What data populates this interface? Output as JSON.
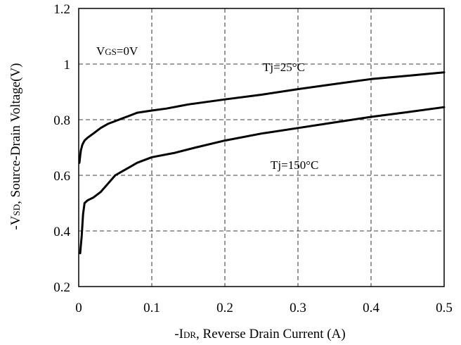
{
  "chart_data": {
    "type": "line",
    "title": "",
    "xlabel": {
      "prefix": "-I",
      "sub": "DR",
      "rest": ", Reverse Drain Current (A)"
    },
    "ylabel": {
      "prefix": "-V",
      "sub": "SD",
      "rest": ", Source-Drain Voltage(V)"
    },
    "xlim": [
      0,
      0.5
    ],
    "ylim": [
      0.2,
      1.2
    ],
    "x_ticks": [
      0,
      0.1,
      0.2,
      0.3,
      0.4,
      0.5
    ],
    "y_ticks": [
      0.2,
      0.4,
      0.6,
      0.8,
      1.0,
      1.2
    ],
    "x_tick_labels": [
      "0",
      "0.1",
      "0.2",
      "0.3",
      "0.4",
      "0.5"
    ],
    "y_tick_labels": [
      "0.2",
      "0.4",
      "0.6",
      "0.8",
      "1",
      "1.2"
    ],
    "grid": "dashed",
    "annotations": {
      "condition": {
        "prefix": "V",
        "sub": "GS",
        "rest": "=0V"
      },
      "series_labels": [
        "Tj=25°C",
        "Tj=150°C"
      ]
    },
    "series": [
      {
        "name": "Tj=25°C",
        "x": [
          0.001,
          0.002,
          0.003,
          0.005,
          0.008,
          0.012,
          0.02,
          0.03,
          0.04,
          0.05,
          0.06,
          0.07,
          0.08,
          0.1,
          0.12,
          0.15,
          0.2,
          0.25,
          0.3,
          0.35,
          0.4,
          0.45,
          0.5
        ],
        "values": [
          0.645,
          0.67,
          0.69,
          0.71,
          0.725,
          0.735,
          0.75,
          0.77,
          0.785,
          0.795,
          0.805,
          0.815,
          0.825,
          0.833,
          0.84,
          0.855,
          0.873,
          0.89,
          0.91,
          0.928,
          0.946,
          0.958,
          0.97
        ]
      },
      {
        "name": "Tj=150°C",
        "x": [
          0.002,
          0.003,
          0.004,
          0.005,
          0.006,
          0.008,
          0.012,
          0.02,
          0.03,
          0.04,
          0.05,
          0.06,
          0.07,
          0.08,
          0.1,
          0.13,
          0.16,
          0.2,
          0.25,
          0.3,
          0.35,
          0.4,
          0.45,
          0.5
        ],
        "values": [
          0.32,
          0.35,
          0.38,
          0.42,
          0.46,
          0.5,
          0.51,
          0.52,
          0.54,
          0.57,
          0.6,
          0.615,
          0.63,
          0.645,
          0.665,
          0.68,
          0.7,
          0.725,
          0.75,
          0.77,
          0.79,
          0.81,
          0.827,
          0.845
        ]
      }
    ]
  }
}
